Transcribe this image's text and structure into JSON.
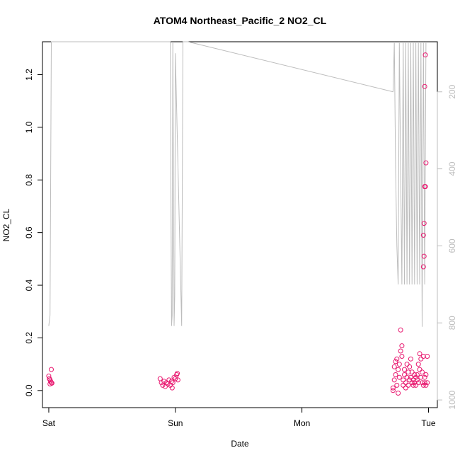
{
  "chart_data": {
    "type": "scatter",
    "title": "ATOM4 Northeast_Pacific_2 NO2_CL",
    "xlabel": "Date",
    "ylabel": "NO2_CL",
    "x_ticks": [
      "Sat",
      "Sun",
      "Mon",
      "Tue"
    ],
    "x_tick_days": [
      0,
      1,
      2,
      3
    ],
    "xlim_days": [
      -0.05,
      3.07
    ],
    "ylim": [
      -0.065,
      1.325
    ],
    "y_ticks": [
      0.0,
      0.2,
      0.4,
      0.6,
      0.8,
      1.0,
      1.2
    ],
    "y_tick_labels": [
      "0.0",
      "0.2",
      "0.4",
      "0.6",
      "0.8",
      "1.0",
      "1.2"
    ],
    "right_axis": {
      "ticks": [
        200,
        400,
        600,
        800,
        1000
      ],
      "ylim": [
        1020,
        70
      ],
      "color": "#bdbdbd",
      "reversed": true
    },
    "grid": false,
    "series": [
      {
        "kind": "points",
        "color": "#e8186f",
        "marker": "open-circle",
        "points": [
          [
            0.0,
            0.055
          ],
          [
            0.005,
            0.045
          ],
          [
            0.01,
            0.025
          ],
          [
            0.015,
            0.035
          ],
          [
            0.02,
            0.03
          ],
          [
            0.025,
            0.028
          ],
          [
            0.02,
            0.08
          ],
          [
            0.01,
            0.04
          ],
          [
            0.88,
            0.045
          ],
          [
            0.89,
            0.03
          ],
          [
            0.9,
            0.02
          ],
          [
            0.91,
            0.035
          ],
          [
            0.92,
            0.015
          ],
          [
            0.93,
            0.03
          ],
          [
            0.94,
            0.025
          ],
          [
            0.95,
            0.04
          ],
          [
            0.96,
            0.02
          ],
          [
            0.97,
            0.035
          ],
          [
            0.98,
            0.03
          ],
          [
            0.99,
            0.05
          ],
          [
            1.0,
            0.045
          ],
          [
            1.01,
            0.06
          ],
          [
            1.02,
            0.04
          ],
          [
            1.015,
            0.065
          ],
          [
            0.975,
            0.01
          ],
          [
            2.72,
            0.01
          ],
          [
            2.72,
            0.0
          ],
          [
            2.73,
            0.04
          ],
          [
            2.73,
            0.09
          ],
          [
            2.74,
            0.11
          ],
          [
            2.74,
            0.06
          ],
          [
            2.75,
            0.02
          ],
          [
            2.75,
            0.12
          ],
          [
            2.76,
            0.08
          ],
          [
            2.76,
            -0.01
          ],
          [
            2.77,
            0.05
          ],
          [
            2.77,
            0.1
          ],
          [
            2.78,
            0.15
          ],
          [
            2.78,
            0.23
          ],
          [
            2.79,
            0.17
          ],
          [
            2.79,
            0.13
          ],
          [
            2.8,
            0.04
          ],
          [
            2.8,
            0.02
          ],
          [
            2.81,
            0.06
          ],
          [
            2.81,
            0.08
          ],
          [
            2.82,
            0.03
          ],
          [
            2.82,
            0.01
          ],
          [
            2.83,
            0.05
          ],
          [
            2.83,
            0.1
          ],
          [
            2.84,
            0.07
          ],
          [
            2.84,
            0.02
          ],
          [
            2.85,
            0.04
          ],
          [
            2.85,
            0.09
          ],
          [
            2.86,
            0.12
          ],
          [
            2.86,
            0.05
          ],
          [
            2.87,
            0.03
          ],
          [
            2.87,
            0.07
          ],
          [
            2.88,
            0.02
          ],
          [
            2.88,
            0.04
          ],
          [
            2.89,
            0.06
          ],
          [
            2.89,
            0.03
          ],
          [
            2.9,
            0.05
          ],
          [
            2.9,
            0.02
          ],
          [
            2.91,
            0.04
          ],
          [
            2.91,
            0.06
          ],
          [
            2.92,
            0.03
          ],
          [
            2.92,
            0.1
          ],
          [
            2.93,
            0.08
          ],
          [
            2.93,
            0.14
          ],
          [
            2.94,
            0.12
          ],
          [
            2.94,
            0.05
          ],
          [
            2.95,
            0.03
          ],
          [
            2.95,
            0.07
          ],
          [
            2.96,
            0.02
          ],
          [
            2.96,
            0.13
          ],
          [
            2.97,
            0.05
          ],
          [
            2.97,
            0.03
          ],
          [
            2.98,
            0.06
          ],
          [
            2.98,
            0.02
          ],
          [
            2.99,
            0.13
          ],
          [
            2.99,
            0.03
          ],
          [
            2.96,
            0.47
          ],
          [
            2.965,
            0.51
          ],
          [
            2.96,
            0.59
          ],
          [
            2.965,
            0.635
          ],
          [
            2.97,
            0.775
          ],
          [
            2.975,
            0.775
          ],
          [
            2.98,
            0.865
          ],
          [
            2.97,
            1.155
          ],
          [
            2.975,
            1.275
          ]
        ]
      },
      {
        "kind": "line",
        "axis": "right",
        "color": "#bdbdbd",
        "points": [
          [
            0.0,
            808
          ],
          [
            0.01,
            780
          ],
          [
            0.02,
            70
          ],
          [
            0.95,
            70
          ],
          [
            0.96,
            20
          ],
          [
            0.97,
            808
          ],
          [
            0.975,
            780
          ],
          [
            0.98,
            40
          ],
          [
            0.99,
            808
          ],
          [
            0.995,
            730
          ],
          [
            1.0,
            100
          ],
          [
            1.05,
            808
          ],
          [
            1.06,
            70
          ],
          [
            1.1,
            70
          ],
          [
            2.72,
            200
          ],
          [
            2.73,
            60
          ],
          [
            2.74,
            400
          ],
          [
            2.75,
            600
          ],
          [
            2.76,
            700
          ],
          [
            2.77,
            60
          ],
          [
            2.78,
            400
          ],
          [
            2.79,
            700
          ],
          [
            2.8,
            60
          ],
          [
            2.81,
            700
          ],
          [
            2.82,
            60
          ],
          [
            2.83,
            700
          ],
          [
            2.84,
            60
          ],
          [
            2.85,
            700
          ],
          [
            2.86,
            60
          ],
          [
            2.87,
            700
          ],
          [
            2.88,
            60
          ],
          [
            2.89,
            700
          ],
          [
            2.9,
            60
          ],
          [
            2.91,
            700
          ],
          [
            2.92,
            60
          ],
          [
            2.93,
            700
          ],
          [
            2.94,
            60
          ],
          [
            2.95,
            810
          ],
          [
            2.96,
            60
          ],
          [
            2.97,
            700
          ],
          [
            2.98,
            60
          ]
        ]
      }
    ]
  }
}
